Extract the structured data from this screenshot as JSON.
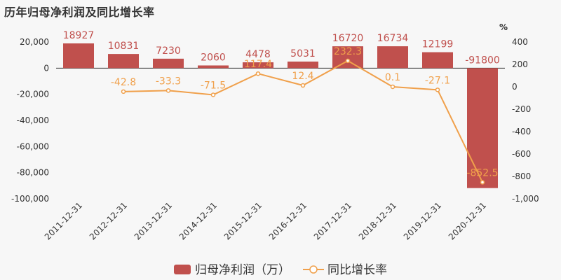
{
  "title": "历年归母净利润及同比增长率",
  "colors": {
    "bar": "#c0504d",
    "line": "#f0a04b"
  },
  "chart_data": {
    "type": "bar",
    "categories": [
      "2011-12-31",
      "2012-12-31",
      "2013-12-31",
      "2014-12-31",
      "2015-12-31",
      "2016-12-31",
      "2017-12-31",
      "2018-12-31",
      "2019-12-31",
      "2020-12-31"
    ],
    "series": [
      {
        "name": "归母净利润（万）",
        "type": "bar",
        "axis": "left",
        "values": [
          18927,
          10831,
          7230,
          2060,
          4478,
          5031,
          16720,
          16734,
          12199,
          -91800
        ],
        "labels": [
          "18927",
          "10831",
          "7230",
          "2060",
          "4478",
          "5031",
          "16720",
          "16734",
          "12199",
          "-91800"
        ]
      },
      {
        "name": "同比增长率",
        "type": "line",
        "axis": "right",
        "values": [
          null,
          -42.8,
          -33.3,
          -71.5,
          117.4,
          12.4,
          232.3,
          0.1,
          -27.1,
          -852.5
        ],
        "labels": [
          "",
          "-42.8",
          "-33.3",
          "-71.5",
          "117.4",
          "12.4",
          "232.3",
          "0.1",
          "-27.1",
          "-852.5"
        ]
      }
    ],
    "y_left": {
      "ylim": [
        -100000,
        20000
      ],
      "ticks": [
        "20,000",
        "0",
        "-20,000",
        "-40,000",
        "-60,000",
        "-80,000",
        "-100,000"
      ]
    },
    "y_right": {
      "ylim": [
        -1000,
        400
      ],
      "unit": "%",
      "ticks": [
        "400",
        "200",
        "0",
        "-200",
        "-400",
        "-600",
        "-800",
        "-1,000"
      ]
    },
    "legend": "bottom"
  }
}
